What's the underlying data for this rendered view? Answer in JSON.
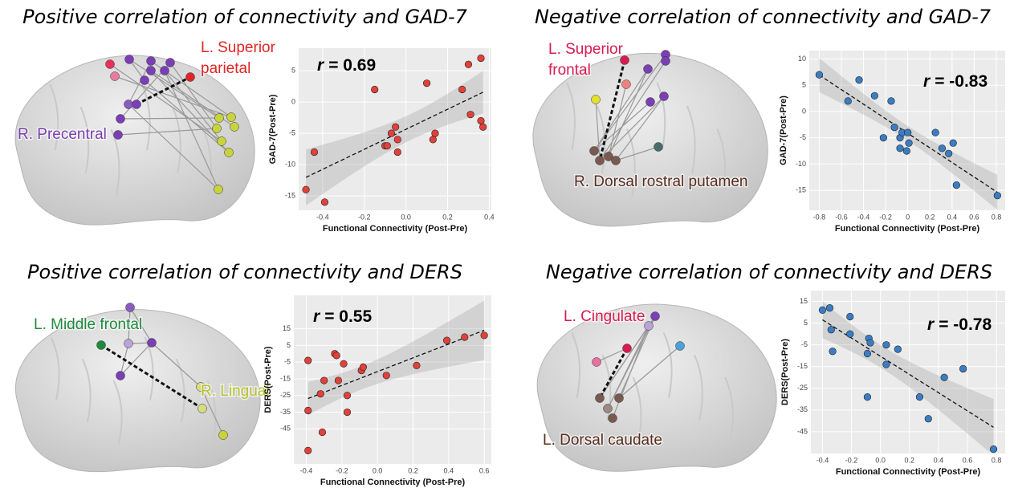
{
  "chart_data": [
    {
      "type": "scatter",
      "title": "Positive correlation of connectivity and GAD-7",
      "stat_symbol": "r",
      "stat_value": "= 0.69",
      "xlabel": "Functional Connectivity (Post-Pre)",
      "ylabel": "GAD-7(Post-Pre)",
      "color": "#e0413a",
      "grid": true,
      "trend_line": true,
      "x": [
        -0.48,
        -0.39,
        -0.44,
        -0.15,
        -0.1,
        -0.09,
        -0.07,
        -0.05,
        -0.04,
        -0.04,
        0.1,
        0.13,
        0.14,
        0.27,
        0.3,
        0.31,
        0.36,
        0.36,
        0.37
      ],
      "values": [
        -14,
        -16,
        -8,
        2,
        -7,
        -7,
        -5,
        -4,
        -6,
        -8,
        3,
        -6,
        -5,
        2,
        6,
        -2,
        7,
        -3,
        -4
      ],
      "xlim": [
        -0.515,
        0.41
      ],
      "ylim": [
        -17.3,
        8.6
      ],
      "xticks": [
        -0.4,
        -0.2,
        {
          "value": 0,
          "label": "0.0"
        },
        0.2,
        0.4
      ],
      "yticks": [
        5,
        0,
        -5,
        -10,
        -15
      ],
      "region_labels": [
        {
          "lines": [
            "L. Superior",
            "parietal"
          ],
          "color": "#e02424"
        },
        {
          "lines": [
            "R. Precentral"
          ],
          "color": "#7a3fb0"
        }
      ]
    },
    {
      "type": "scatter",
      "title": "Negative correlation of connectivity and GAD-7",
      "stat_symbol": "r",
      "stat_value": "= -0.83",
      "xlabel": "Functional Connectivity (Post-Pre)",
      "ylabel": "GAD-7(Post-Pre)",
      "color": "#3b7dc4",
      "grid": true,
      "trend_line": true,
      "x": [
        -0.8,
        -0.54,
        -0.44,
        -0.3,
        -0.22,
        -0.15,
        -0.12,
        -0.07,
        -0.05,
        -0.01,
        -0.07,
        0.0,
        0.01,
        0.25,
        0.31,
        0.37,
        0.41,
        0.44,
        0.81
      ],
      "values": [
        7,
        2,
        6,
        3,
        -5,
        2,
        -3,
        -5,
        -4,
        -7.5,
        -7,
        -4,
        -6,
        -4,
        -7,
        -8,
        -6,
        -14,
        -16
      ],
      "xlim": [
        -0.89,
        0.88
      ],
      "ylim": [
        -18.8,
        11.6
      ],
      "xticks": [
        -0.8,
        -0.6,
        -0.4,
        -0.2,
        {
          "value": 0,
          "label": "0"
        },
        0.2,
        0.4,
        0.6,
        0.8
      ],
      "yticks": [
        10,
        5,
        0,
        -5,
        -10,
        -15
      ],
      "region_labels": [
        {
          "lines": [
            "L. Superior",
            "frontal"
          ],
          "color": "#d81b50"
        },
        {
          "lines": [
            "R. Dorsal rostral putamen"
          ],
          "color": "#5a2d1e"
        }
      ]
    },
    {
      "type": "scatter",
      "title": "Positive correlation of connectivity and DERS",
      "stat_symbol": "r",
      "stat_value": "= 0.55",
      "xlabel": "Functional Connectivity (Post-Pre)",
      "ylabel": "DERS(Post-Pre)",
      "color": "#e0413a",
      "grid": true,
      "trend_line": true,
      "x": [
        -0.39,
        -0.39,
        -0.39,
        -0.32,
        -0.31,
        -0.3,
        -0.24,
        -0.23,
        -0.22,
        -0.19,
        -0.17,
        -0.17,
        -0.09,
        -0.08,
        0.05,
        0.22,
        0.39,
        0.49,
        0.6
      ],
      "values": [
        -4,
        -34,
        -58,
        -24,
        -47,
        -16,
        0,
        -1,
        -16,
        -6,
        -25,
        -35,
        -10,
        -8,
        -13,
        -7,
        8,
        10,
        11
      ],
      "xlim": [
        -0.47,
        0.64
      ],
      "ylim": [
        -66,
        35
      ],
      "xticks": [
        -0.4,
        -0.2,
        {
          "value": 0,
          "label": "0.0"
        },
        0.2,
        0.4,
        0.6
      ],
      "yticks": [
        15,
        5,
        -5,
        -15,
        -25,
        -35,
        -45
      ],
      "region_labels": [
        {
          "lines": [
            "L. Middle frontal"
          ],
          "color": "#1e8a3e"
        },
        {
          "lines": [
            "R. Lingual"
          ],
          "color": "#b5c22a"
        }
      ]
    },
    {
      "type": "scatter",
      "title": "Negative correlation of connectivity and DERS",
      "stat_symbol": "r",
      "stat_value": "= -0.78",
      "xlabel": "Functional Connectivity (Post-Pre)",
      "ylabel": "DERS(Post-Pre)",
      "color": "#3b7dc4",
      "grid": true,
      "trend_line": true,
      "x": [
        -0.4,
        -0.35,
        -0.34,
        -0.33,
        -0.21,
        -0.21,
        -0.08,
        -0.07,
        -0.09,
        -0.09,
        0.04,
        0.04,
        0.12,
        0.27,
        0.33,
        0.44,
        0.57,
        0.78
      ],
      "values": [
        11,
        12,
        2,
        -8,
        8,
        0,
        -2,
        -4,
        -9,
        -29,
        -5,
        -14,
        -7,
        -29,
        -39,
        -20,
        -16,
        -53
      ],
      "xlim": [
        -0.48,
        0.86
      ],
      "ylim": [
        -55,
        20
      ],
      "xticks": [
        -0.4,
        -0.2,
        {
          "value": 0,
          "label": "0.0"
        },
        0.2,
        0.4,
        0.6,
        0.8
      ],
      "yticks": [
        15,
        5,
        -5,
        -15,
        -25,
        -35,
        -45
      ],
      "region_labels": [
        {
          "lines": [
            "L. Cingulate"
          ],
          "color": "#d81b50"
        },
        {
          "lines": [
            "L. Dorsal caudate"
          ],
          "color": "#5a2d1e"
        }
      ]
    }
  ]
}
